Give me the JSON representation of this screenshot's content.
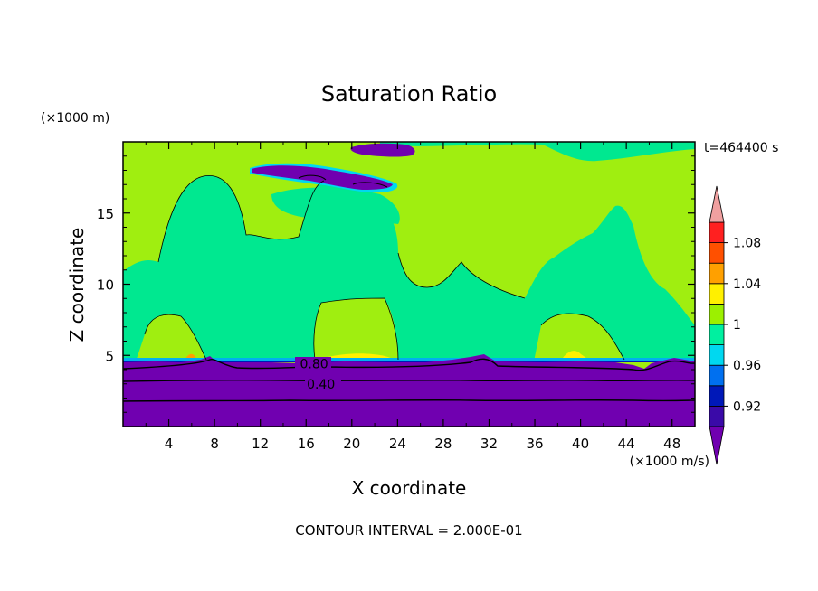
{
  "chart_data": {
    "type": "heatmap",
    "title": "Saturation Ratio",
    "xlabel": "X coordinate",
    "ylabel": "Z coordinate",
    "x_unit": "(×1000 m/s)",
    "y_unit": "(×1000 m)",
    "time_label": "t=464400 s",
    "contour_interval": "CONTOUR INTERVAL = 2.000E-01",
    "xlim": [
      0,
      50
    ],
    "ylim": [
      0,
      20
    ],
    "x_ticks": [
      4,
      8,
      12,
      16,
      20,
      24,
      28,
      32,
      36,
      40,
      44,
      48
    ],
    "y_ticks": [
      5,
      10,
      15
    ],
    "contour_labels": [
      {
        "text": "0.80",
        "x": 16.7,
        "z": 4.4
      },
      {
        "text": "0.40",
        "x": 17.3,
        "z": 3.0
      }
    ],
    "colorbar": {
      "levels": [
        0.9,
        0.92,
        0.94,
        0.96,
        0.98,
        1.0,
        1.02,
        1.04,
        1.06,
        1.08,
        1.1
      ],
      "tick_labels": [
        {
          "text": "0.92",
          "value": 0.92
        },
        {
          "text": "0.96",
          "value": 0.96
        },
        {
          "text": "1",
          "value": 1.0
        },
        {
          "text": "1.04",
          "value": 1.04
        },
        {
          "text": "1.08",
          "value": 1.08
        }
      ],
      "colors": [
        "#3a0aa8",
        "#0018b8",
        "#0070f0",
        "#00d8f0",
        "#00f0a0",
        "#9cf000",
        "#fff000",
        "#ffa000",
        "#ff5000",
        "#ff2020"
      ],
      "under_color": "#7000b0",
      "over_color": "#f0a0a0"
    },
    "regions": {
      "subsaturated_base_color": "#7000b0",
      "saturated_color": "#00e890",
      "supersaturated_color": "#a0ee10",
      "cirrus_color": "#7000b0",
      "cirrus_edge_color": "#00d8f0"
    }
  }
}
